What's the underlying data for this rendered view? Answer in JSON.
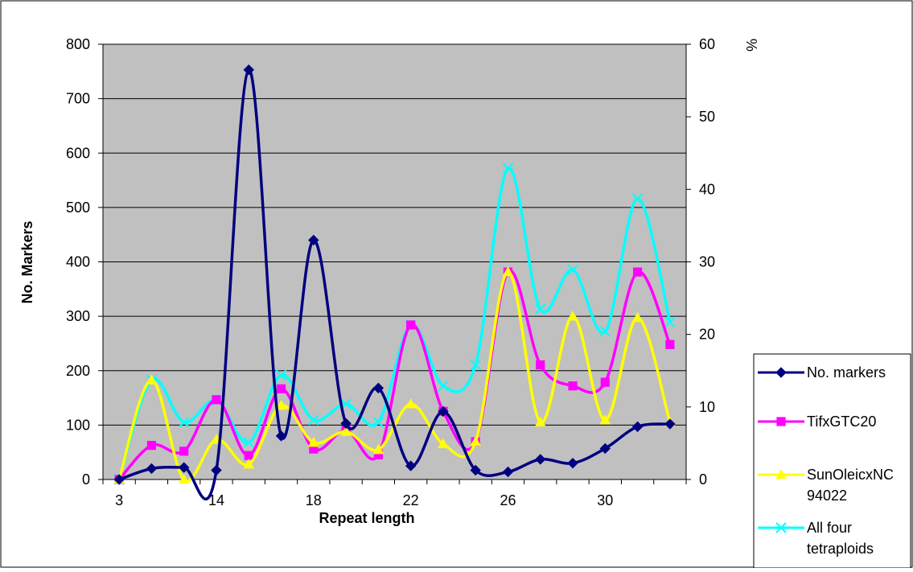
{
  "chart_data": {
    "type": "line",
    "title": "",
    "xlabel": "Repeat length",
    "ylabel": "No. Markers",
    "y2label": "%",
    "ylim": [
      0,
      800
    ],
    "y2lim": [
      0,
      60
    ],
    "yticks": [
      0,
      100,
      200,
      300,
      400,
      500,
      600,
      700,
      800
    ],
    "y2ticks": [
      0,
      10,
      20,
      30,
      40,
      50,
      60
    ],
    "grid": true,
    "plot_bg": "#c0c0c0",
    "legend_position": "right-bottom",
    "categories": [
      "3",
      "",
      "",
      "14",
      "",
      "",
      "18",
      "",
      "",
      "22",
      "",
      "",
      "26",
      "",
      "",
      "30",
      "",
      ""
    ],
    "series": [
      {
        "name": "No. markers",
        "axis": "left",
        "color": "#000080",
        "marker": "diamond",
        "values": [
          0,
          20,
          22,
          17,
          753,
          80,
          440,
          103,
          168,
          25,
          125,
          17,
          14,
          37,
          30,
          57,
          97,
          102
        ]
      },
      {
        "name": "TifxGTC20",
        "axis": "right",
        "color": "#ff00ff",
        "marker": "square",
        "values": [
          0,
          4.7,
          3.9,
          11,
          3.3,
          12.5,
          4.2,
          6.8,
          3.4,
          21.3,
          9.4,
          5.2,
          28.6,
          15.8,
          12.9,
          13.4,
          28.6,
          18.6
        ]
      },
      {
        "name": "SunOleicxNC\n94022",
        "axis": "right",
        "color": "#ffff00",
        "marker": "triangle",
        "values": [
          0,
          13.7,
          0,
          5.5,
          2.1,
          10.2,
          5.1,
          6.6,
          4.1,
          10.4,
          4.9,
          5.2,
          28.6,
          7.9,
          22.5,
          8.2,
          22.3,
          7.9
        ]
      },
      {
        "name": "All four\ntetraploids",
        "axis": "right",
        "color": "#00ffff",
        "marker": "x",
        "values": [
          0,
          13.7,
          7.9,
          10.9,
          5.1,
          14.4,
          8.2,
          10.4,
          7.9,
          21.3,
          12.9,
          15.8,
          42.9,
          23.5,
          28.9,
          20.4,
          38.7,
          21.7
        ]
      }
    ]
  }
}
